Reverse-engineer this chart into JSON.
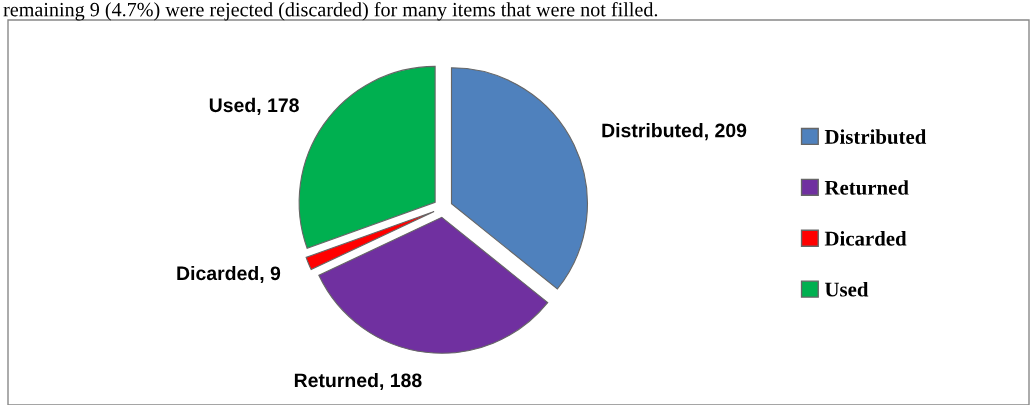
{
  "chart_data": {
    "type": "pie",
    "categories": [
      "Distributed",
      "Returned",
      "Dicarded",
      "Used"
    ],
    "values": [
      209,
      188,
      9,
      178
    ],
    "colors": [
      "#4f81bd",
      "#7030a0",
      "#ff0000",
      "#00b050"
    ],
    "value_labels": [
      "Distributed, 209",
      "Returned, 188",
      "Dicarded, 9",
      "Used, 178"
    ],
    "legend": "right",
    "annotations": [
      "remaining 9 (4.7%) were rejected (discarded) for many items that were not filled."
    ]
  }
}
